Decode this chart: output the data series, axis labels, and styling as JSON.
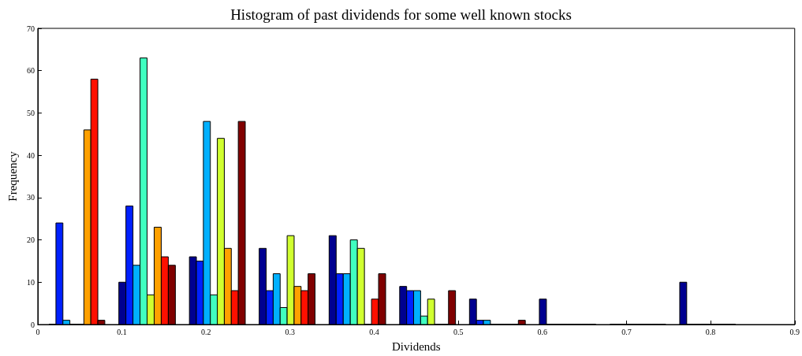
{
  "chart_data": {
    "type": "histogram",
    "title": "Histogram of past dividends for some well known stocks",
    "xlabel": "Dividends",
    "ylabel": "Frequency",
    "bins": [
      0.005,
      0.088,
      0.172,
      0.255,
      0.338,
      0.422,
      0.505,
      0.588,
      0.672,
      0.755,
      0.838
    ],
    "series": [
      {
        "color": "#000090",
        "values": [
          0,
          10,
          16,
          18,
          21,
          9,
          6,
          6,
          0,
          10
        ]
      },
      {
        "color": "#0020ff",
        "values": [
          24,
          28,
          15,
          8,
          12,
          8,
          1,
          0,
          0,
          0
        ]
      },
      {
        "color": "#00b0ff",
        "values": [
          1,
          14,
          48,
          12,
          12,
          8,
          1,
          0,
          0,
          0
        ]
      },
      {
        "color": "#40ffc0",
        "values": [
          0,
          63,
          7,
          4,
          20,
          2,
          0,
          0,
          0,
          0
        ]
      },
      {
        "color": "#d0ff30",
        "values": [
          0,
          7,
          44,
          21,
          18,
          6,
          0,
          0,
          0,
          0
        ]
      },
      {
        "color": "#ffa000",
        "values": [
          46,
          23,
          18,
          9,
          0,
          0,
          0,
          0,
          0,
          0
        ]
      },
      {
        "color": "#ff1000",
        "values": [
          58,
          16,
          8,
          8,
          6,
          0,
          0,
          0,
          0,
          0
        ]
      },
      {
        "color": "#800000",
        "values": [
          1,
          14,
          48,
          12,
          12,
          8,
          1,
          0,
          0,
          0
        ]
      }
    ],
    "xlim": [
      0,
      0.9
    ],
    "xticks": [
      0,
      0.1,
      0.2,
      0.3,
      0.4,
      0.5,
      0.6,
      0.7,
      0.8,
      0.9
    ],
    "ylim": [
      0,
      70
    ],
    "yticks": [
      0,
      10,
      20,
      30,
      40,
      50,
      60,
      70
    ],
    "grid": false
  }
}
